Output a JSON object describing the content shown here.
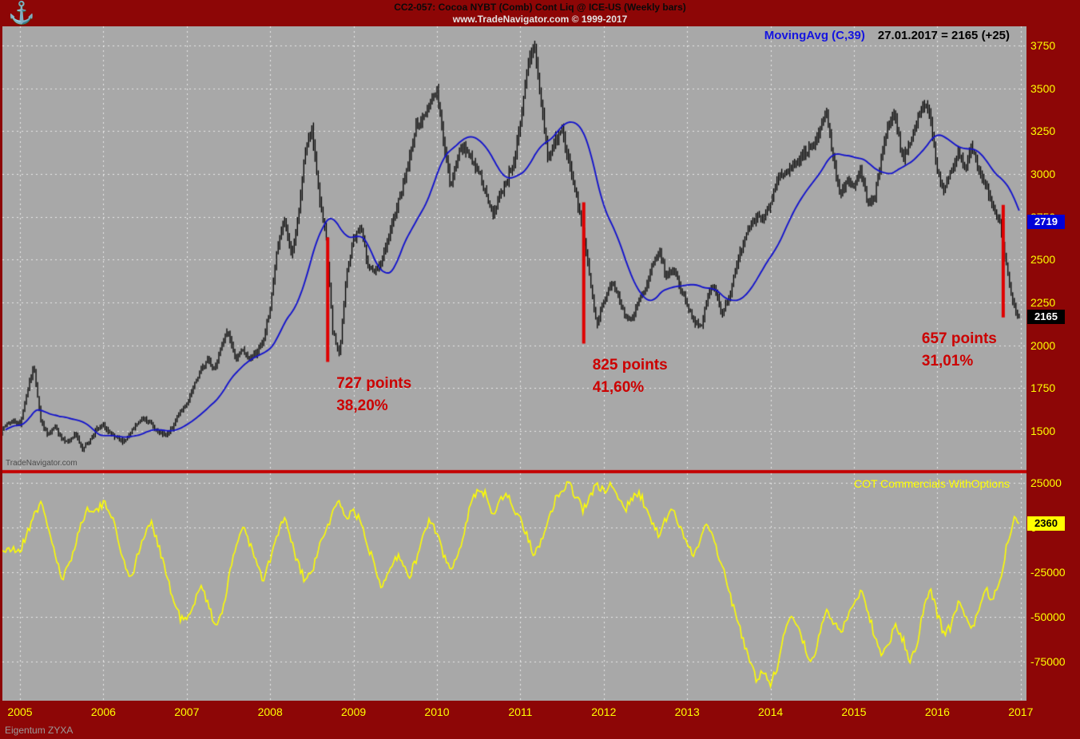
{
  "header": {
    "title": "CC2-057:  Cocoa NYBT (Comb) Cont Liq @ ICE-US  (Weekly bars)",
    "subtitle": "www.TradeNavigator.com © 1999-2017"
  },
  "legend": {
    "ma_label": "MovingAvg (C,39)",
    "readout": "27.01.2017 = 2165 (+25)"
  },
  "branding": {
    "watermark": "TradeNavigator.com",
    "footer": "Eigentum ZYXA",
    "logo_icon": "anchor-emblem"
  },
  "colors": {
    "frame": "#8d0606",
    "panel_bg": "#a8a8a8",
    "grid": "rgba(255,255,255,0.75)",
    "bars": "#000000",
    "ma_line": "#1414cc",
    "drop_line": "#e00000",
    "divider": "#c40000",
    "annotation_text": "#cc0000",
    "axis_text": "#ffff00",
    "ma_box_bg": "#0000d8",
    "close_box_bg": "#000000",
    "cot_box_bg": "#ffff00"
  },
  "x_axis": {
    "years": [
      2005,
      2006,
      2007,
      2008,
      2009,
      2010,
      2011,
      2012,
      2013,
      2014,
      2015,
      2016,
      2017
    ]
  },
  "chart_data": [
    {
      "type": "bar",
      "name": "Cocoa NYBT (Comb) Cont Liq, weekly bars",
      "x_start": 2004.75,
      "x_step": 0.0833333,
      "ylim": [
        1272,
        3862
      ],
      "yticks": [
        3750,
        3500,
        3250,
        3000,
        2750,
        2500,
        2250,
        2000,
        1750,
        1500
      ],
      "last_close": 2165,
      "close": [
        1480,
        1540,
        1560,
        1540,
        1720,
        1880,
        1560,
        1470,
        1520,
        1460,
        1440,
        1480,
        1400,
        1440,
        1510,
        1530,
        1480,
        1450,
        1440,
        1490,
        1550,
        1580,
        1530,
        1490,
        1470,
        1520,
        1620,
        1650,
        1760,
        1850,
        1920,
        1860,
        2010,
        2080,
        1920,
        1970,
        1920,
        1960,
        2020,
        2220,
        2550,
        2750,
        2520,
        2720,
        3120,
        3280,
        2880,
        2650,
        2080,
        1940,
        2420,
        2620,
        2700,
        2480,
        2420,
        2480,
        2620,
        2780,
        2920,
        3080,
        3280,
        3320,
        3420,
        3480,
        3180,
        2920,
        3120,
        3160,
        3080,
        3020,
        2880,
        2760,
        2860,
        2960,
        3060,
        3280,
        3620,
        3760,
        3420,
        3080,
        3200,
        3260,
        3060,
        2880,
        2680,
        2380,
        2120,
        2260,
        2360,
        2300,
        2180,
        2140,
        2260,
        2320,
        2460,
        2560,
        2400,
        2460,
        2340,
        2240,
        2140,
        2100,
        2300,
        2340,
        2180,
        2280,
        2440,
        2600,
        2700,
        2760,
        2740,
        2820,
        2960,
        3000,
        3040,
        3080,
        3120,
        3180,
        3240,
        3360,
        3080,
        2880,
        2960,
        2920,
        3020,
        2820,
        2860,
        3120,
        3300,
        3340,
        3080,
        3180,
        3300,
        3420,
        3340,
        3020,
        2900,
        3020,
        3120,
        3040,
        3160,
        3000,
        2940,
        2800,
        2720,
        2440,
        2220,
        2165
      ],
      "overlays": [
        {
          "type": "sma",
          "name": "MovingAvg (C,39)",
          "period": 39,
          "last_value": 2719
        }
      ],
      "drop_lines": [
        {
          "x": 2008.69,
          "price_from": 2630,
          "price_to": 1903,
          "label1": "727 points",
          "label2": "38,20%",
          "label_side": "right"
        },
        {
          "x": 2011.76,
          "price_from": 2835,
          "price_to": 2010,
          "label1": "825 points",
          "label2": "41,60%",
          "label_side": "right"
        },
        {
          "x": 2016.79,
          "price_from": 2820,
          "price_to": 2163,
          "label1": "657 points",
          "label2": "31,01%",
          "label_side": "left"
        }
      ]
    },
    {
      "type": "line",
      "name": "COT Commercials WithOptions",
      "color": "#ffff00",
      "x_start": 2004.75,
      "x_step": 0.0833333,
      "ylim": [
        -96875,
        30357
      ],
      "yticks": [
        25000,
        0,
        -25000,
        -50000,
        -75000
      ],
      "last_value": 2360,
      "values": [
        -10000,
        -14000,
        -12000,
        -13000,
        -4000,
        8000,
        13000,
        2000,
        -14000,
        -30000,
        -22000,
        -8000,
        4000,
        12000,
        9000,
        13000,
        10000,
        -5000,
        -20000,
        -28000,
        -15000,
        -3000,
        2000,
        -10000,
        -25000,
        -40000,
        -50000,
        -52000,
        -45000,
        -30000,
        -42000,
        -55000,
        -48000,
        -30000,
        -12000,
        2000,
        -8000,
        -20000,
        -30000,
        -18000,
        -5000,
        6000,
        -8000,
        -20000,
        -30000,
        -25000,
        -12000,
        -2000,
        8000,
        15000,
        5000,
        10000,
        3000,
        -10000,
        -20000,
        -32000,
        -25000,
        -15000,
        -20000,
        -28000,
        -18000,
        -5000,
        5000,
        -5000,
        -15000,
        -25000,
        -15000,
        0,
        15000,
        22000,
        18000,
        8000,
        15000,
        20000,
        10000,
        5000,
        -5000,
        -15000,
        -8000,
        5000,
        15000,
        22000,
        24000,
        18000,
        10000,
        18000,
        23000,
        20000,
        24000,
        18000,
        10000,
        15000,
        20000,
        12000,
        2000,
        -5000,
        5000,
        10000,
        0,
        -8000,
        -15000,
        -5000,
        2000,
        -10000,
        -20000,
        -35000,
        -50000,
        -62000,
        -75000,
        -85000,
        -80000,
        -87000,
        -78000,
        -60000,
        -48000,
        -55000,
        -68000,
        -75000,
        -62000,
        -45000,
        -52000,
        -60000,
        -50000,
        -42000,
        -35000,
        -48000,
        -60000,
        -72000,
        -65000,
        -55000,
        -62000,
        -74000,
        -68000,
        -45000,
        -35000,
        -48000,
        -60000,
        -55000,
        -42000,
        -50000,
        -58000,
        -45000,
        -35000,
        -40000,
        -30000,
        -10000,
        5000,
        2360
      ]
    }
  ]
}
